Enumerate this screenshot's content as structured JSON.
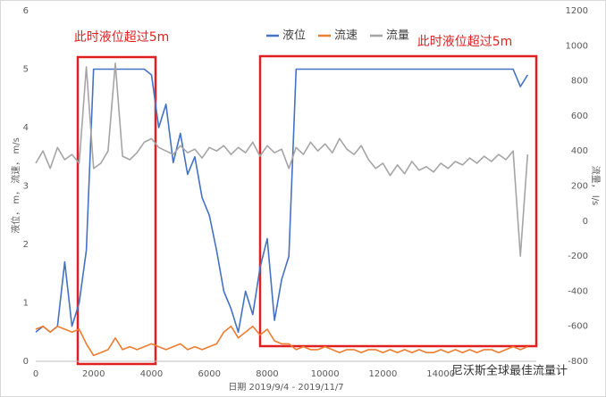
{
  "chart_data": {
    "type": "line",
    "x_label": "日期 2019/9/4 - 2019/11/7",
    "y_label": "液位， m， 流速， m/s",
    "y2_label": "流量， l/s",
    "annotations": [
      "此时液位超过5m",
      "此时液位超过5m"
    ],
    "watermark": "尼沃斯全球最佳流量计",
    "legend": "top",
    "x": [
      0,
      250,
      500,
      750,
      1000,
      1250,
      1500,
      1750,
      2000,
      2250,
      2500,
      2750,
      3000,
      3250,
      3500,
      3750,
      4000,
      4250,
      4500,
      4750,
      5000,
      5250,
      5500,
      5750,
      6000,
      6250,
      6500,
      6750,
      7000,
      7250,
      7500,
      7750,
      8000,
      8250,
      8500,
      8750,
      9000,
      9250,
      9500,
      9750,
      10000,
      10250,
      10500,
      10750,
      11000,
      11250,
      11500,
      11750,
      12000,
      12250,
      12500,
      12750,
      13000,
      13250,
      13500,
      13750,
      14000,
      14250,
      14500,
      14750,
      15000,
      15250,
      15500,
      15750,
      16000,
      16250,
      16500,
      16750,
      17000
    ],
    "series": [
      {
        "name": "液位",
        "color": "#4472c4",
        "values": [
          0.5,
          0.6,
          0.5,
          0.6,
          1.7,
          0.6,
          1.0,
          1.9,
          5.0,
          5.0,
          5.0,
          5.0,
          5.0,
          5.0,
          5.0,
          5.0,
          4.9,
          4.0,
          4.4,
          3.4,
          3.9,
          3.2,
          3.5,
          2.8,
          2.5,
          1.9,
          1.2,
          0.9,
          0.5,
          1.2,
          0.8,
          1.6,
          2.1,
          0.7,
          1.4,
          1.8,
          5.0,
          5.0,
          5.0,
          5.0,
          5.0,
          5.0,
          5.0,
          5.0,
          5.0,
          5.0,
          5.0,
          5.0,
          5.0,
          5.0,
          5.0,
          5.0,
          5.0,
          5.0,
          5.0,
          5.0,
          5.0,
          5.0,
          5.0,
          5.0,
          5.0,
          5.0,
          5.0,
          5.0,
          5.0,
          5.0,
          5.0,
          4.7,
          4.9
        ]
      },
      {
        "name": "流速",
        "color": "#ed7d31",
        "values": [
          0.55,
          0.6,
          0.5,
          0.6,
          0.55,
          0.5,
          0.55,
          0.3,
          0.1,
          0.15,
          0.2,
          0.4,
          0.2,
          0.25,
          0.2,
          0.25,
          0.3,
          0.25,
          0.2,
          0.25,
          0.3,
          0.2,
          0.25,
          0.2,
          0.25,
          0.3,
          0.5,
          0.6,
          0.4,
          0.5,
          0.6,
          0.45,
          0.55,
          0.35,
          0.3,
          0.3,
          0.2,
          0.25,
          0.2,
          0.2,
          0.25,
          0.2,
          0.15,
          0.2,
          0.2,
          0.15,
          0.2,
          0.2,
          0.15,
          0.2,
          0.15,
          0.2,
          0.15,
          0.2,
          0.15,
          0.15,
          0.2,
          0.15,
          0.2,
          0.15,
          0.2,
          0.15,
          0.2,
          0.2,
          0.15,
          0.2,
          0.25,
          0.2,
          0.25
        ]
      },
      {
        "name": "流量",
        "color": "#a5a5a5",
        "axis": "y2",
        "values": [
          330,
          400,
          300,
          420,
          350,
          380,
          330,
          880,
          300,
          330,
          400,
          900,
          370,
          350,
          390,
          450,
          470,
          420,
          400,
          380,
          430,
          390,
          410,
          360,
          420,
          400,
          430,
          380,
          420,
          390,
          450,
          370,
          430,
          390,
          410,
          300,
          420,
          380,
          450,
          400,
          440,
          390,
          470,
          410,
          380,
          430,
          350,
          300,
          330,
          260,
          320,
          270,
          340,
          290,
          310,
          280,
          330,
          300,
          340,
          320,
          360,
          330,
          370,
          340,
          380,
          350,
          400,
          -200,
          380
        ]
      }
    ],
    "xlim": [
      0,
      17300
    ],
    "xticks": [
      0,
      2000,
      4000,
      6000,
      8000,
      10000,
      12000,
      14000
    ],
    "ylim": [
      0,
      6
    ],
    "yticks": [
      0,
      1,
      2,
      3,
      4,
      5,
      6
    ],
    "y2lim": [
      -800,
      1200
    ],
    "y2ticks": [
      -800,
      -600,
      -400,
      -200,
      0,
      200,
      400,
      600,
      800,
      1000,
      1200
    ]
  }
}
